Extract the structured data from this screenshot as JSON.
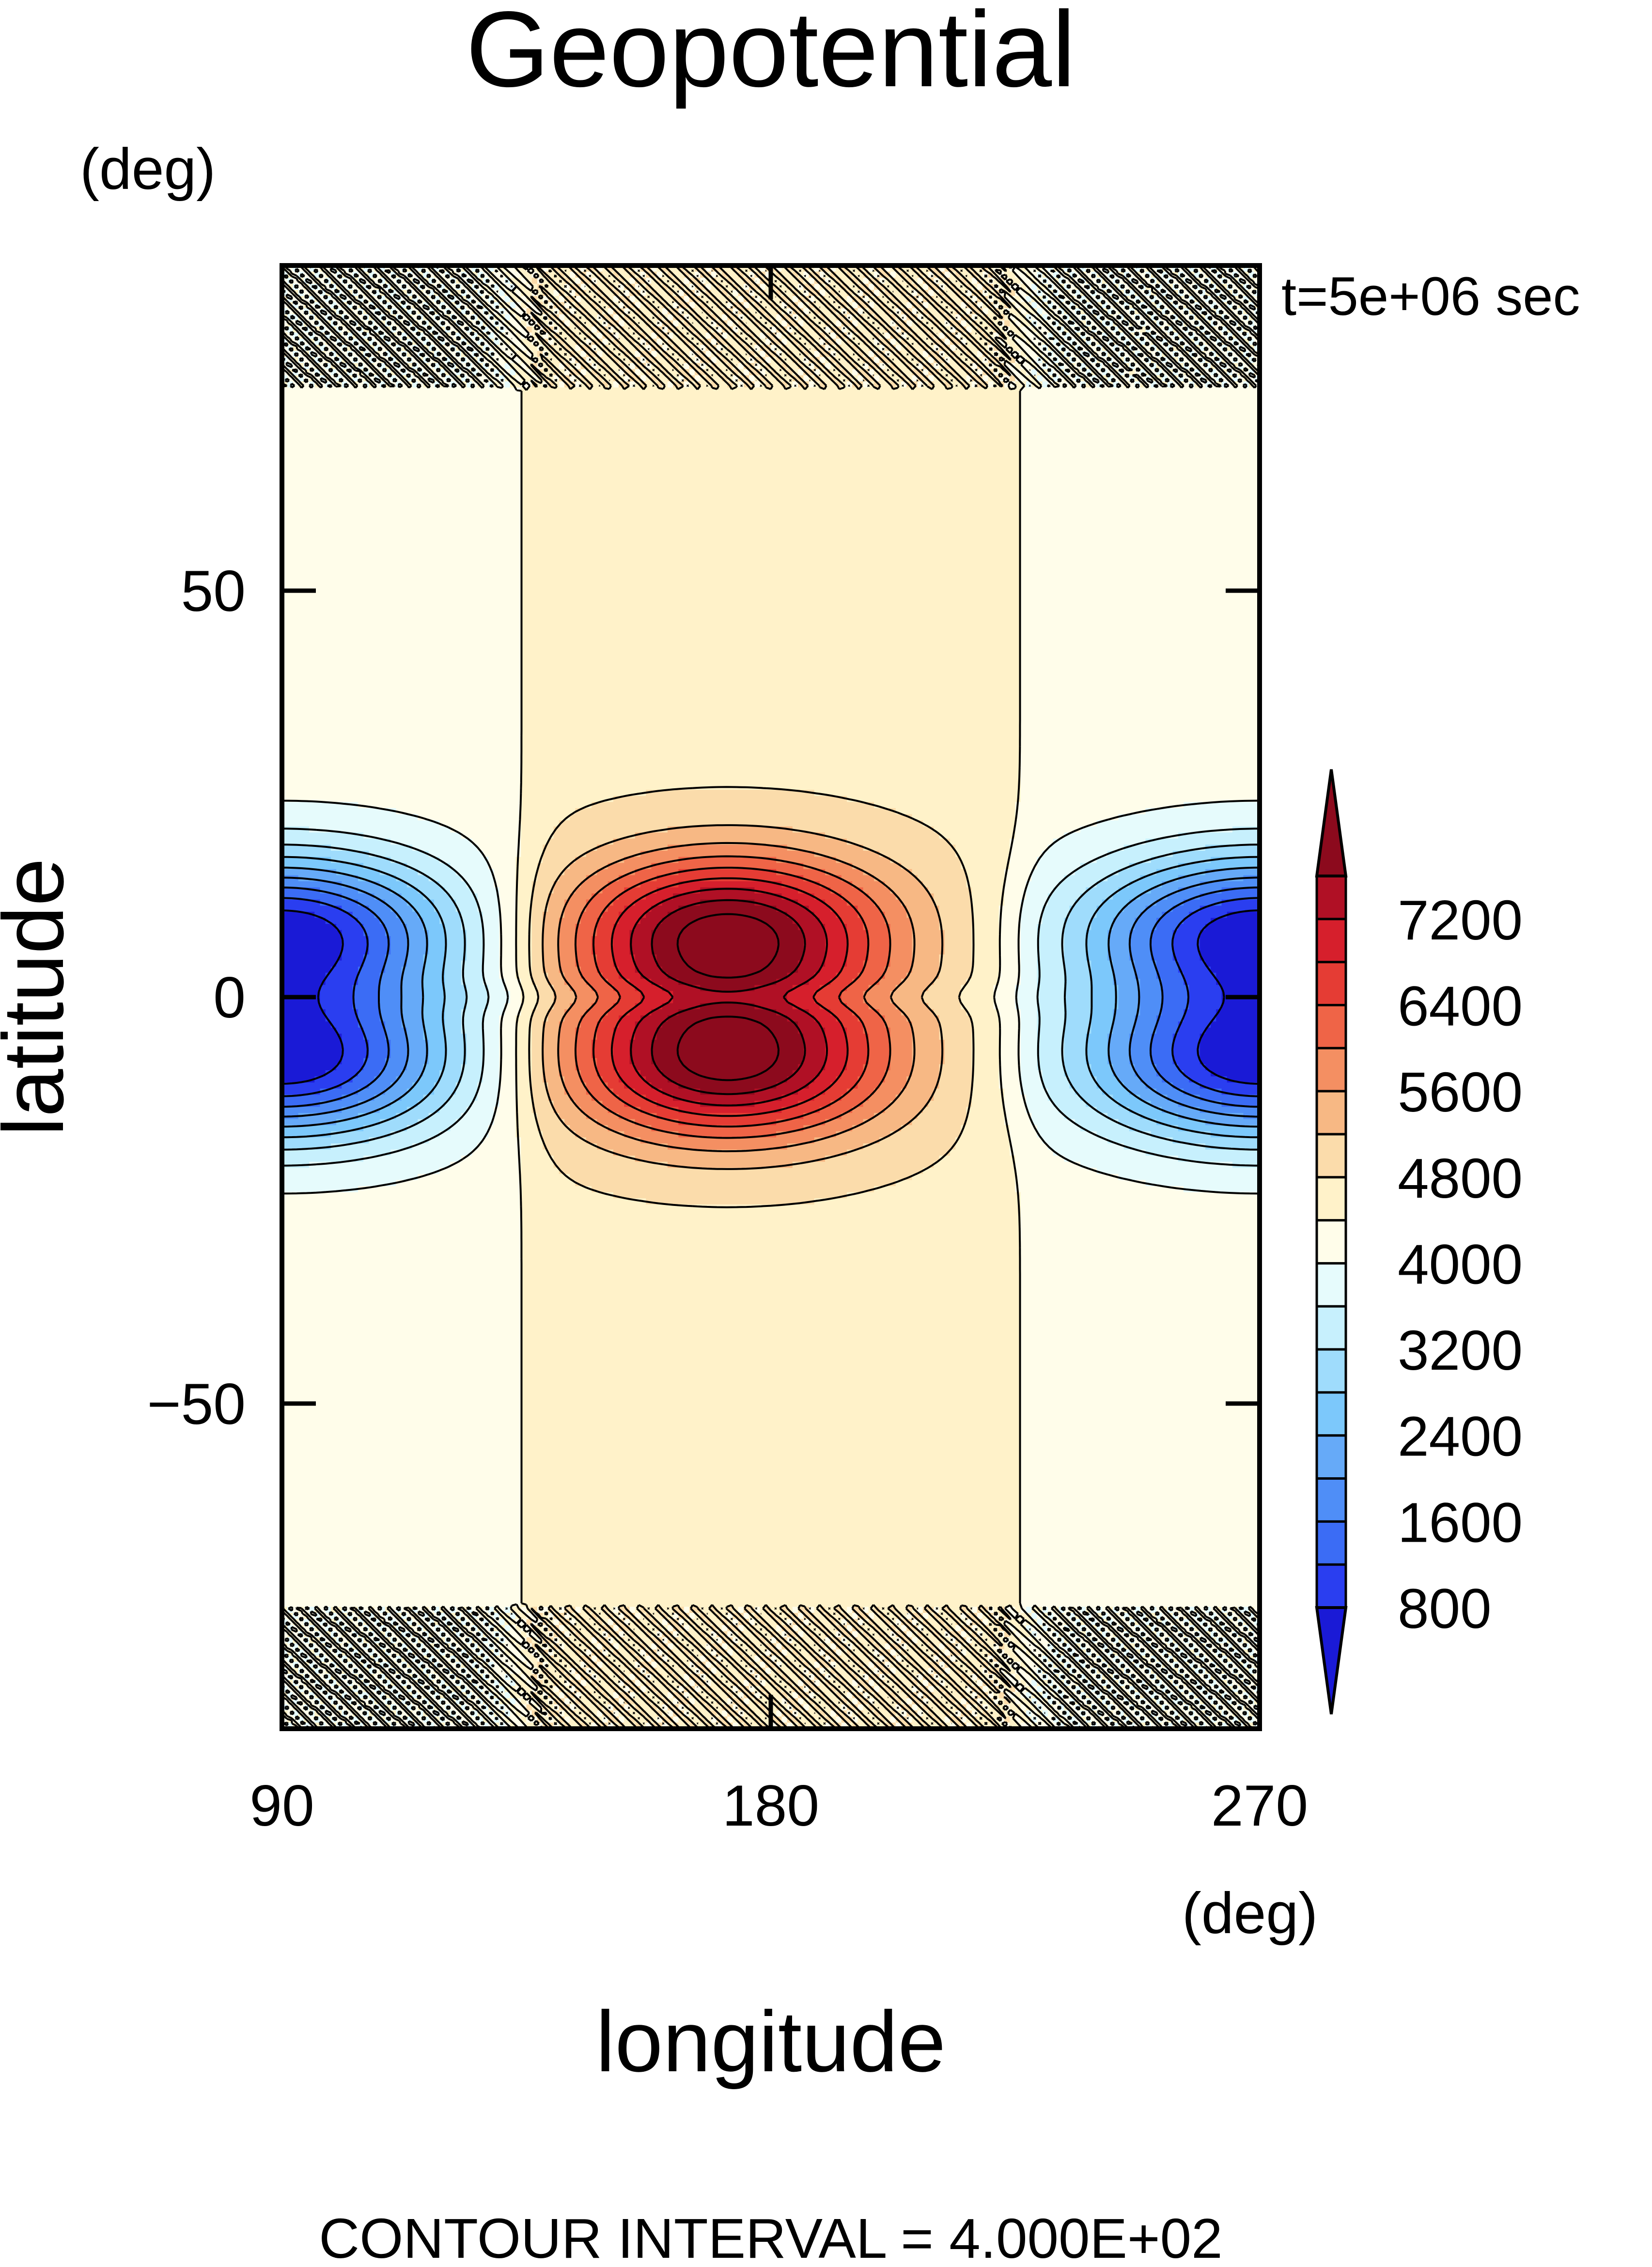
{
  "chart_data": {
    "type": "contour",
    "title": "Geopotential",
    "time_label": "t=5e+06 sec",
    "xlabel": "longitude",
    "ylabel": "latitude",
    "xunit": "(deg)",
    "yunit": "(deg)",
    "x_ticks": [
      90,
      180,
      270
    ],
    "x_tick_labels": [
      "90",
      "180",
      "270"
    ],
    "y_ticks": [
      50,
      0,
      -50
    ],
    "y_tick_labels": [
      "50",
      "0",
      "−50"
    ],
    "xlim": [
      90,
      270
    ],
    "ylim": [
      -90,
      90
    ],
    "footer": "CONTOUR INTERVAL = 4.000E+02",
    "contour_interval": 400,
    "levels": [
      400,
      800,
      1200,
      1600,
      2000,
      2400,
      2800,
      3200,
      3600,
      4000,
      4400,
      4800,
      5200,
      5600,
      6000,
      6400,
      6800,
      7200,
      7600
    ],
    "colorbar": {
      "labels": [
        "7200",
        "6400",
        "5600",
        "4800",
        "4000",
        "3200",
        "2400",
        "1600",
        "800"
      ],
      "extend": "both"
    },
    "field": {
      "background": 4000,
      "meridional_band_lon": [
        135,
        225
      ],
      "band_value": 4300,
      "outside_value": 3800,
      "highs": [
        {
          "lon": 172,
          "lat": 8,
          "peak": 7700
        },
        {
          "lon": 172,
          "lat": -8,
          "peak": 7700
        }
      ],
      "lows": [
        {
          "lon": 270,
          "lat": 8,
          "min": 200
        },
        {
          "lon": 270,
          "lat": -8,
          "min": 200
        },
        {
          "lon": 90,
          "lat": 8,
          "min": 200
        },
        {
          "lon": 90,
          "lat": -8,
          "min": 200
        }
      ]
    }
  }
}
